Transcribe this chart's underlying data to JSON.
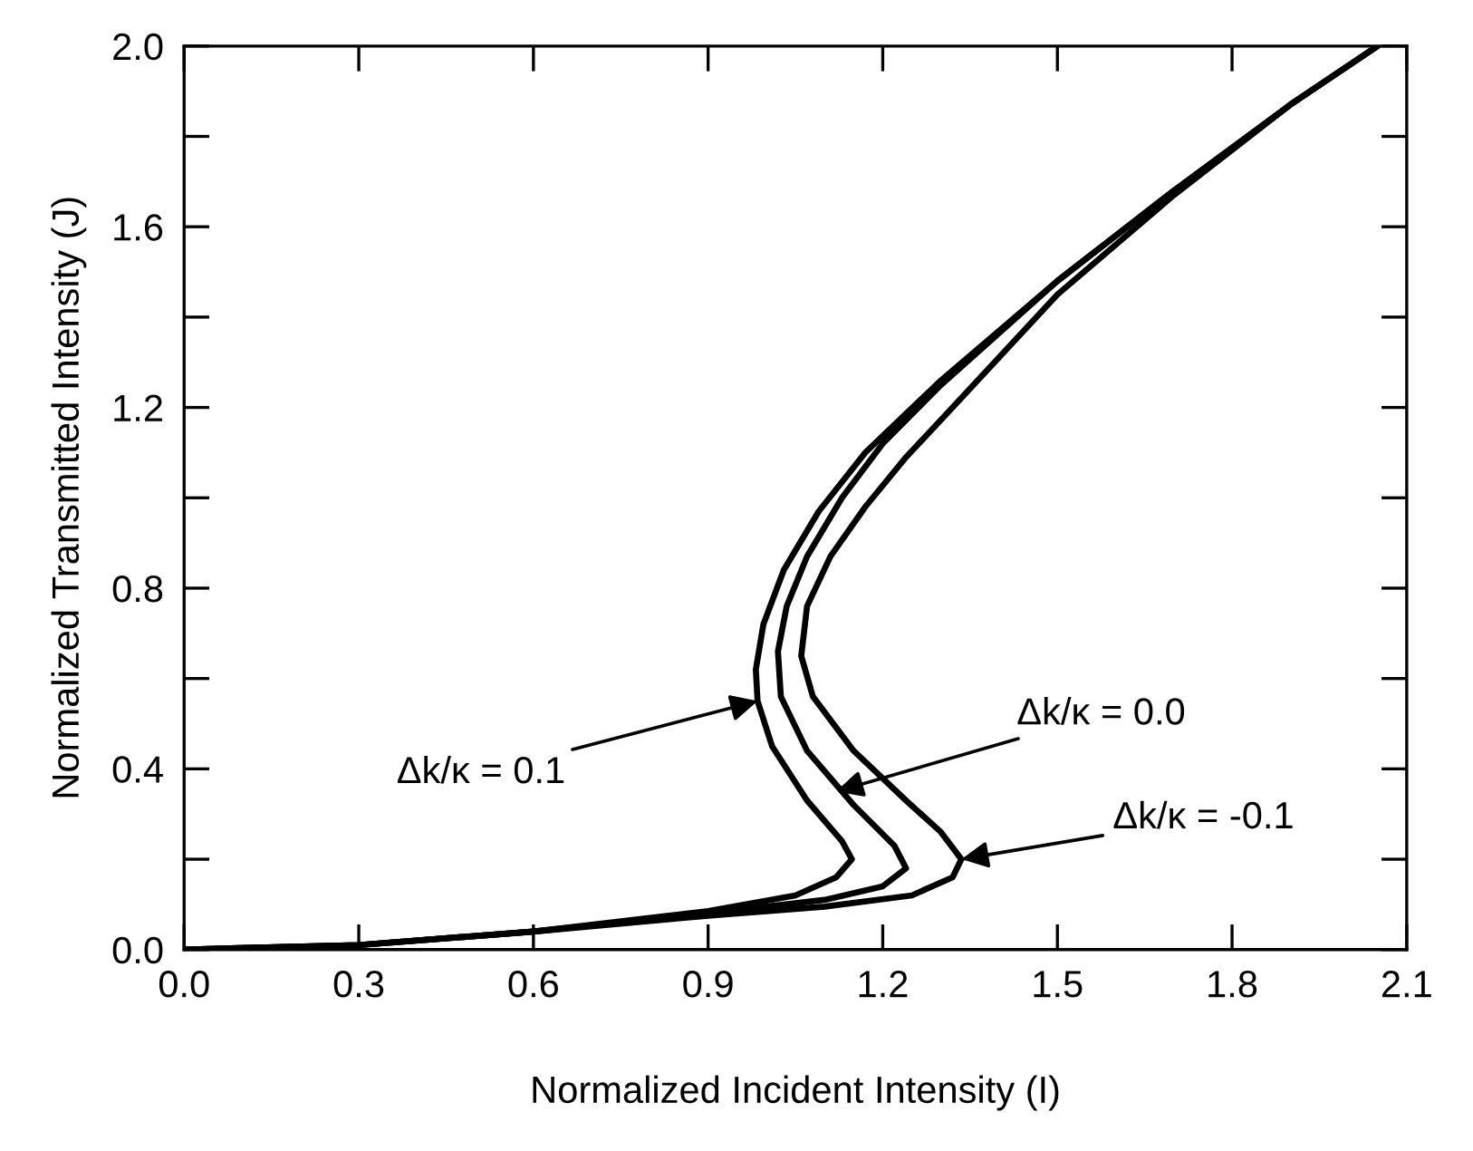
{
  "chart_data": {
    "type": "line",
    "xlabel": "Normalized Incident Intensity (I)",
    "ylabel": "Normalized Transmitted Intensity (J)",
    "xlim": [
      0.0,
      2.1
    ],
    "ylim": [
      0.0,
      2.0
    ],
    "xticks": [
      {
        "value": 0.0,
        "label": "0.0"
      },
      {
        "value": 0.3,
        "label": "0.3"
      },
      {
        "value": 0.6,
        "label": "0.6"
      },
      {
        "value": 0.9,
        "label": "0.9"
      },
      {
        "value": 1.2,
        "label": "1.2"
      },
      {
        "value": 1.5,
        "label": "1.5"
      },
      {
        "value": 1.8,
        "label": "1.8"
      },
      {
        "value": 2.1,
        "label": "2.1"
      }
    ],
    "yticks": [
      {
        "value": 0.0,
        "label": "0.0"
      },
      {
        "value": 0.2,
        "label": null
      },
      {
        "value": 0.4,
        "label": "0.4"
      },
      {
        "value": 0.6,
        "label": null
      },
      {
        "value": 0.8,
        "label": "0.8"
      },
      {
        "value": 1.0,
        "label": null
      },
      {
        "value": 1.2,
        "label": "1.2"
      },
      {
        "value": 1.4,
        "label": null
      },
      {
        "value": 1.6,
        "label": "1.6"
      },
      {
        "value": 1.8,
        "label": null
      },
      {
        "value": 2.0,
        "label": "2.0"
      }
    ],
    "grid": false,
    "marker": "none",
    "line_style": "solid",
    "series": [
      {
        "color": "#000000",
        "x": [
          0.0,
          0.3,
          0.6,
          0.9,
          1.05,
          1.12,
          1.147,
          1.13,
          1.07,
          1.01,
          0.985,
          0.982,
          0.995,
          1.03,
          1.09,
          1.17,
          1.3,
          1.5,
          1.7,
          1.9,
          2.05
        ],
        "values": [
          0.0,
          0.01,
          0.04,
          0.085,
          0.12,
          0.16,
          0.2,
          0.24,
          0.33,
          0.45,
          0.55,
          0.62,
          0.72,
          0.84,
          0.97,
          1.1,
          1.26,
          1.48,
          1.68,
          1.87,
          2.0
        ]
      },
      {
        "color": "#000000",
        "x": [
          0.0,
          0.3,
          0.6,
          0.9,
          1.1,
          1.2,
          1.24,
          1.22,
          1.15,
          1.07,
          1.025,
          1.02,
          1.035,
          1.07,
          1.13,
          1.2,
          1.3,
          1.5,
          1.7,
          1.9,
          2.05
        ],
        "values": [
          0.0,
          0.01,
          0.04,
          0.08,
          0.11,
          0.14,
          0.18,
          0.23,
          0.32,
          0.44,
          0.56,
          0.66,
          0.76,
          0.87,
          1.0,
          1.12,
          1.25,
          1.48,
          1.68,
          1.87,
          2.0
        ]
      },
      {
        "color": "#000000",
        "x": [
          0.0,
          0.3,
          0.6,
          0.9,
          1.1,
          1.25,
          1.32,
          1.335,
          1.3,
          1.24,
          1.15,
          1.08,
          1.06,
          1.07,
          1.11,
          1.17,
          1.24,
          1.32,
          1.5,
          1.7,
          1.9,
          2.05
        ],
        "values": [
          0.0,
          0.01,
          0.04,
          0.075,
          0.095,
          0.12,
          0.16,
          0.2,
          0.26,
          0.33,
          0.44,
          0.56,
          0.65,
          0.76,
          0.87,
          0.98,
          1.09,
          1.2,
          1.45,
          1.67,
          1.87,
          2.0
        ]
      }
    ],
    "annotations": [
      {
        "text": "Δk/κ = 0.1",
        "x": 0.985,
        "y": 0.55
      },
      {
        "text": "Δk/κ = 0.0",
        "x": 1.12,
        "y": 0.35
      },
      {
        "text": "Δk/κ = -0.1",
        "x": 1.335,
        "y": 0.2
      }
    ]
  }
}
